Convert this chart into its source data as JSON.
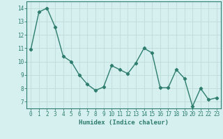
{
  "x": [
    0,
    1,
    2,
    3,
    4,
    5,
    6,
    7,
    8,
    9,
    10,
    11,
    12,
    13,
    14,
    15,
    16,
    17,
    18,
    19,
    20,
    21,
    22,
    23
  ],
  "y": [
    10.9,
    13.7,
    14.0,
    12.6,
    10.4,
    10.0,
    9.0,
    8.3,
    7.85,
    8.1,
    9.7,
    9.4,
    9.1,
    9.9,
    11.0,
    10.65,
    8.05,
    8.05,
    9.4,
    8.75,
    6.65,
    8.0,
    7.15,
    7.3
  ],
  "line_color": "#2e7d6e",
  "marker": "D",
  "marker_size": 2.2,
  "bg_color": "#d5f0ee",
  "grid_color": "#c0deda",
  "axis_color": "#2e7d6e",
  "xlabel": "Humidex (Indice chaleur)",
  "xlim": [
    -0.5,
    23.5
  ],
  "ylim": [
    6.5,
    14.5
  ],
  "yticks": [
    7,
    8,
    9,
    10,
    11,
    12,
    13,
    14
  ],
  "xticks": [
    0,
    1,
    2,
    3,
    4,
    5,
    6,
    7,
    8,
    9,
    10,
    11,
    12,
    13,
    14,
    15,
    16,
    17,
    18,
    19,
    20,
    21,
    22,
    23
  ],
  "xlabel_fontsize": 6.5,
  "tick_fontsize": 5.5,
  "line_width": 1.0
}
